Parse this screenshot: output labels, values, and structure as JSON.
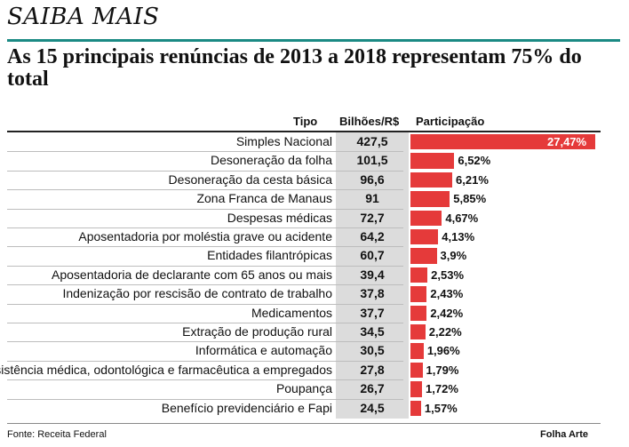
{
  "header": {
    "kicker": "SAIBA MAIS",
    "headline": "As 15 principais renúncias de 2013 a 2018 representam 75% do total"
  },
  "table": {
    "col_type": "Tipo",
    "col_value": "Bilhões/R$",
    "col_share": "Participação"
  },
  "footer": {
    "source": "Fonte: Receita Federal",
    "credit": "Folha Arte"
  },
  "colors": {
    "accent": "#1b8a84",
    "bar": "#e53a3a",
    "value_column": "#dcdcdc"
  },
  "chart_data": {
    "type": "bar",
    "orientation": "horizontal",
    "categories": [
      "Simples Nacional",
      "Desoneração da folha",
      "Desoneração da cesta básica",
      "Zona Franca de Manaus",
      "Despesas médicas",
      "Aposentadoria por moléstia grave ou acidente",
      "Entidades filantrópicas",
      "Aposentadoria de declarante com 65 anos ou mais",
      "Indenização por rescisão de contrato de trabalho",
      "Medicamentos",
      "Extração de produção rural",
      "Informática e automação",
      "Assistência médica, odontológica e farmacêutica a empregados",
      "Poupança",
      "Benefício previdenciário e Fapi"
    ],
    "values_text": [
      "427,5",
      "101,5",
      "96,6",
      "91",
      "72,7",
      "64,2",
      "60,7",
      "39,4",
      "37,8",
      "37,7",
      "34,5",
      "30,5",
      "27,8",
      "26,7",
      "24,5"
    ],
    "values": [
      427.5,
      101.5,
      96.6,
      91,
      72.7,
      64.2,
      60.7,
      39.4,
      37.8,
      37.7,
      34.5,
      30.5,
      27.8,
      26.7,
      24.5
    ],
    "share_labels": [
      "27,47%",
      "6,52%",
      "6,21%",
      "5,85%",
      "4,67%",
      "4,13%",
      "3,9%",
      "2,53%",
      "2,43%",
      "2,42%",
      "2,22%",
      "1,96%",
      "1,79%",
      "1,72%",
      "1,57%"
    ],
    "share": [
      27.47,
      6.52,
      6.21,
      5.85,
      4.67,
      4.13,
      3.9,
      2.53,
      2.43,
      2.42,
      2.22,
      1.96,
      1.79,
      1.72,
      1.57
    ]
  }
}
